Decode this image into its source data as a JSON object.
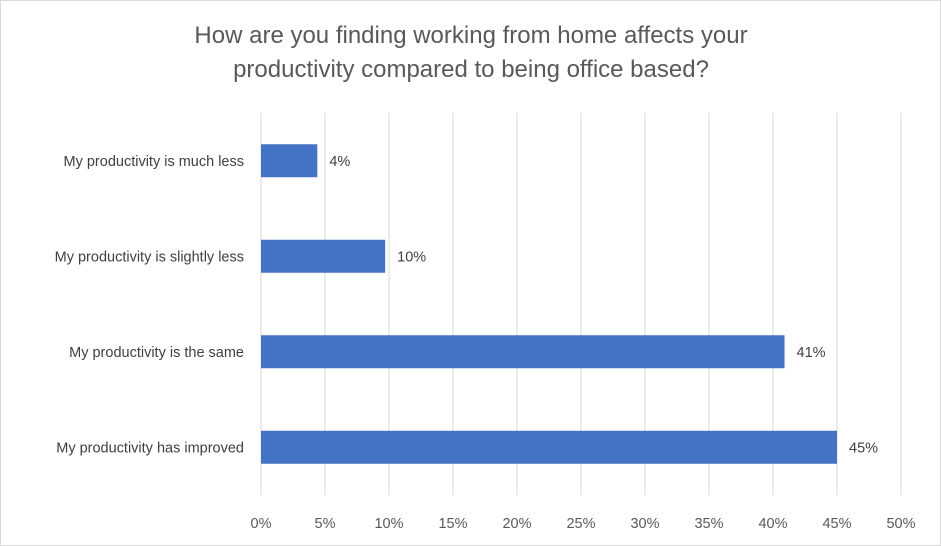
{
  "chart_data": {
    "type": "bar",
    "orientation": "horizontal",
    "title": "How are you finding working from home affects your productivity compared to being office based?",
    "title_lines": [
      "How are you finding working from home affects your",
      "productivity compared to being office based?"
    ],
    "categories": [
      "My productivity is much less",
      "My productivity is slightly less",
      "My productivity is the same",
      "My productivity has improved"
    ],
    "values": [
      4.4,
      9.7,
      40.9,
      45.0
    ],
    "data_labels": [
      "4%",
      "10%",
      "41%",
      "45%"
    ],
    "xlim": [
      0,
      50
    ],
    "x_ticks": [
      0,
      5,
      10,
      15,
      20,
      25,
      30,
      35,
      40,
      45,
      50
    ],
    "x_tick_labels": [
      "0%",
      "5%",
      "10%",
      "15%",
      "20%",
      "25%",
      "30%",
      "35%",
      "40%",
      "45%",
      "50%"
    ],
    "xlabel": "",
    "ylabel": "",
    "grid": "vertical",
    "legend": "none",
    "bar_color": "#4472c4"
  }
}
